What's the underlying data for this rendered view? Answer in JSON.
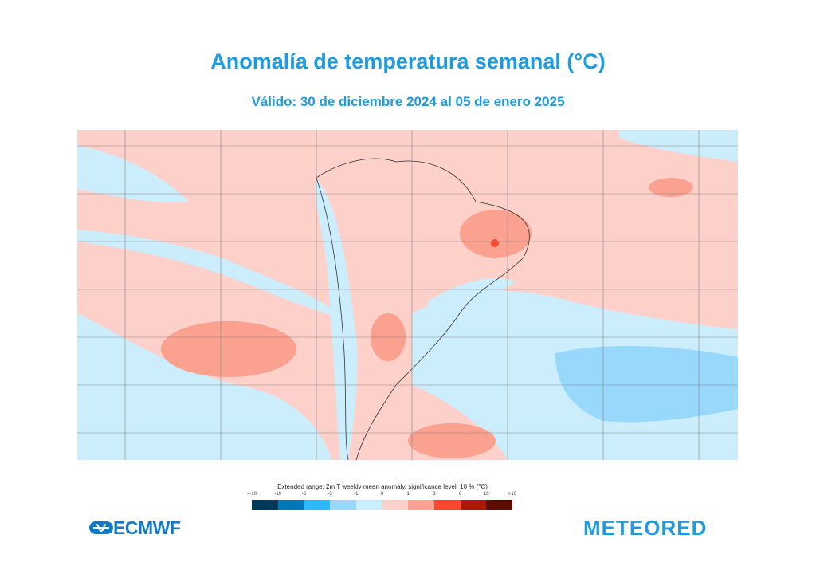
{
  "header": {
    "title": "Anomalía de temperatura semanal  (°C)",
    "subtitle": "Válido: 30 de diciembre 2024 al 05 de enero 2025"
  },
  "chart_data": {
    "type": "heatmap",
    "title": "Anomalía de temperatura semanal  (°C)",
    "subtitle": "Válido: 30 de diciembre 2024 al 05 de enero 2025",
    "region": "South America and surrounding oceans",
    "legend": {
      "title": "Extended range: 2m T weekly mean anomaly, significance level: 10 % (°C)",
      "ticks": [
        "<-10",
        "-10",
        "-6",
        "-3",
        "-1",
        "0",
        "1",
        "3",
        "6",
        "10",
        ">10"
      ],
      "colors": [
        "#003a5b",
        "#0077b6",
        "#2db9f8",
        "#98d8fb",
        "#cceefc",
        "#fdd0ca",
        "#fba190",
        "#f94a31",
        "#a91a05",
        "#5c0d00"
      ],
      "placement": "bottom"
    },
    "grid": true
  },
  "logos": {
    "left": "ECMWF",
    "right": "METEORED"
  }
}
